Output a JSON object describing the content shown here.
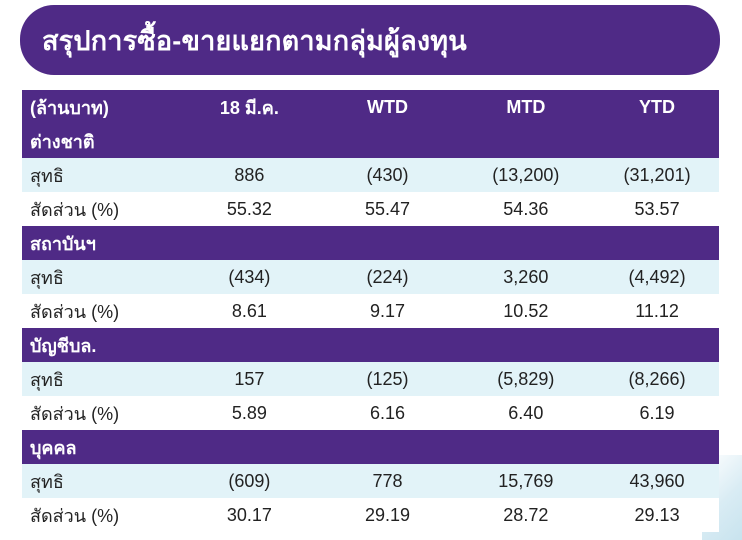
{
  "title": "สรุปการซื้อ-ขายแยกตามกลุ่มผู้ลงทุน",
  "header": {
    "unit": "(ล้านบาท)",
    "columns": [
      "18 มี.ค.",
      "WTD",
      "MTD",
      "YTD"
    ]
  },
  "sections": [
    {
      "name": "ต่างชาติ",
      "rows": [
        {
          "label": "สุทธิ",
          "values": [
            "886",
            "(430)",
            "(13,200)",
            "(31,201)"
          ]
        },
        {
          "label": "สัดส่วน (%)",
          "values": [
            "55.32",
            "55.47",
            "54.36",
            "53.57"
          ]
        }
      ]
    },
    {
      "name": "สถาบันฯ",
      "rows": [
        {
          "label": "สุทธิ",
          "values": [
            "(434)",
            "(224)",
            "3,260",
            "(4,492)"
          ]
        },
        {
          "label": "สัดส่วน (%)",
          "values": [
            "8.61",
            "9.17",
            "10.52",
            "11.12"
          ]
        }
      ]
    },
    {
      "name": "บัญชีบล.",
      "rows": [
        {
          "label": "สุทธิ",
          "values": [
            "157",
            "(125)",
            "(5,829)",
            "(8,266)"
          ]
        },
        {
          "label": "สัดส่วน (%)",
          "values": [
            "5.89",
            "6.16",
            "6.40",
            "6.19"
          ]
        }
      ]
    },
    {
      "name": "บุคคล",
      "rows": [
        {
          "label": "สุทธิ",
          "values": [
            "(609)",
            "778",
            "15,769",
            "43,960"
          ]
        },
        {
          "label": "สัดส่วน (%)",
          "values": [
            "30.17",
            "29.19",
            "28.72",
            "29.13"
          ]
        }
      ]
    }
  ],
  "colors": {
    "header_bg": "#4f2a86",
    "net_row_bg": "#e2f3f8",
    "ratio_row_bg": "#ffffff"
  }
}
